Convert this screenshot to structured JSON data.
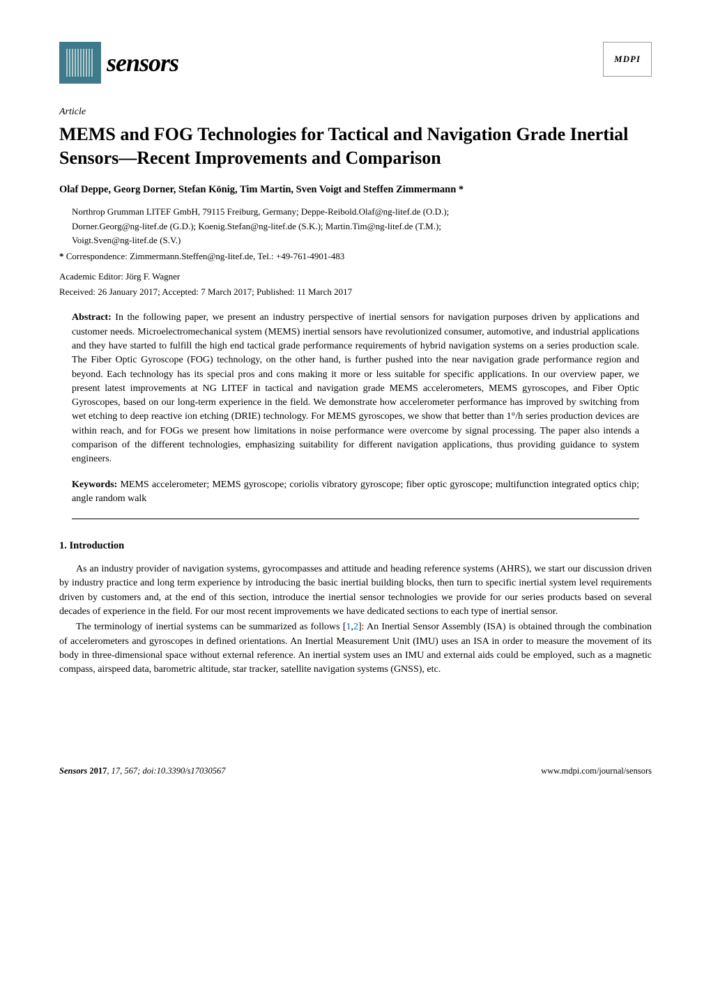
{
  "header": {
    "journal_name": "sensors",
    "publisher": "MDPI"
  },
  "article": {
    "type": "Article",
    "title": "MEMS and FOG Technologies for Tactical and Navigation Grade Inertial Sensors—Recent Improvements and Comparison",
    "authors": "Olaf Deppe, Georg Dorner, Stefan König, Tim Martin, Sven Voigt and Steffen Zimmermann *",
    "affiliation_line1": "Northrop Grumman LITEF GmbH, 79115 Freiburg, Germany; Deppe-Reibold.Olaf@ng-litef.de (O.D.);",
    "affiliation_line2": "Dorner.Georg@ng-litef.de (G.D.); Koenig.Stefan@ng-litef.de (S.K.); Martin.Tim@ng-litef.de (T.M.);",
    "affiliation_line3": "Voigt.Sven@ng-litef.de (S.V.)",
    "correspondence_star": "*",
    "correspondence_label": "Correspondence: Zimmermann.Steffen@ng-litef.de, Tel.: +49-761-4901-483",
    "editor": "Academic Editor: Jörg F. Wagner",
    "dates": "Received: 26 January 2017; Accepted: 7 March 2017; Published: 11 March 2017",
    "abstract_label": "Abstract:",
    "abstract_text": " In the following paper, we present an industry perspective of inertial sensors for navigation purposes driven by applications and customer needs. Microelectromechanical system (MEMS) inertial sensors have revolutionized consumer, automotive, and industrial applications and they have started to fulfill the high end tactical grade performance requirements of hybrid navigation systems on a series production scale. The Fiber Optic Gyroscope (FOG) technology, on the other hand, is further pushed into the near navigation grade performance region and beyond. Each technology has its special pros and cons making it more or less suitable for specific applications. In our overview paper, we present latest improvements at NG LITEF in tactical and navigation grade MEMS accelerometers, MEMS gyroscopes, and Fiber Optic Gyroscopes, based on our long-term experience in the field. We demonstrate how accelerometer performance has improved by switching from wet etching to deep reactive ion etching (DRIE) technology. For MEMS gyroscopes, we show that better than 1°/h series production devices are within reach, and for FOGs we present how limitations in noise performance were overcome by signal processing. The paper also intends a comparison of the different technologies, emphasizing suitability for different navigation applications, thus providing guidance to system engineers.",
    "keywords_label": "Keywords:",
    "keywords_text": " MEMS accelerometer; MEMS gyroscope; coriolis vibratory gyroscope; fiber optic gyroscope; multifunction integrated optics chip; angle random walk"
  },
  "section1": {
    "heading": "1. Introduction",
    "para1": "As an industry provider of navigation systems, gyrocompasses and attitude and heading reference systems (AHRS), we start our discussion driven by industry practice and long term experience by introducing the basic inertial building blocks, then turn to specific inertial system level requirements driven by customers and, at the end of this section, introduce the inertial sensor technologies we provide for our series products based on several decades of experience in the field. For our most recent improvements we have dedicated sections to each type of inertial sensor.",
    "para2_pre": "The terminology of inertial systems can be summarized as follows [",
    "para2_ref1": "1",
    "para2_comma": ",",
    "para2_ref2": "2",
    "para2_post": "]: An Inertial Sensor Assembly (ISA) is obtained through the combination of accelerometers and gyroscopes in defined orientations. An Inertial Measurement Unit (IMU) uses an ISA in order to measure the movement of its body in three-dimensional space without external reference. An inertial system uses an IMU and external aids could be employed, such as a magnetic compass, airspeed data, barometric altitude, star tracker, satellite navigation systems (GNSS), etc."
  },
  "footer": {
    "journal": "Sensors",
    "year": "2017",
    "volume_issue": ", 17, 567; doi:10.3390/s17030567",
    "url": "www.mdpi.com/journal/sensors"
  }
}
